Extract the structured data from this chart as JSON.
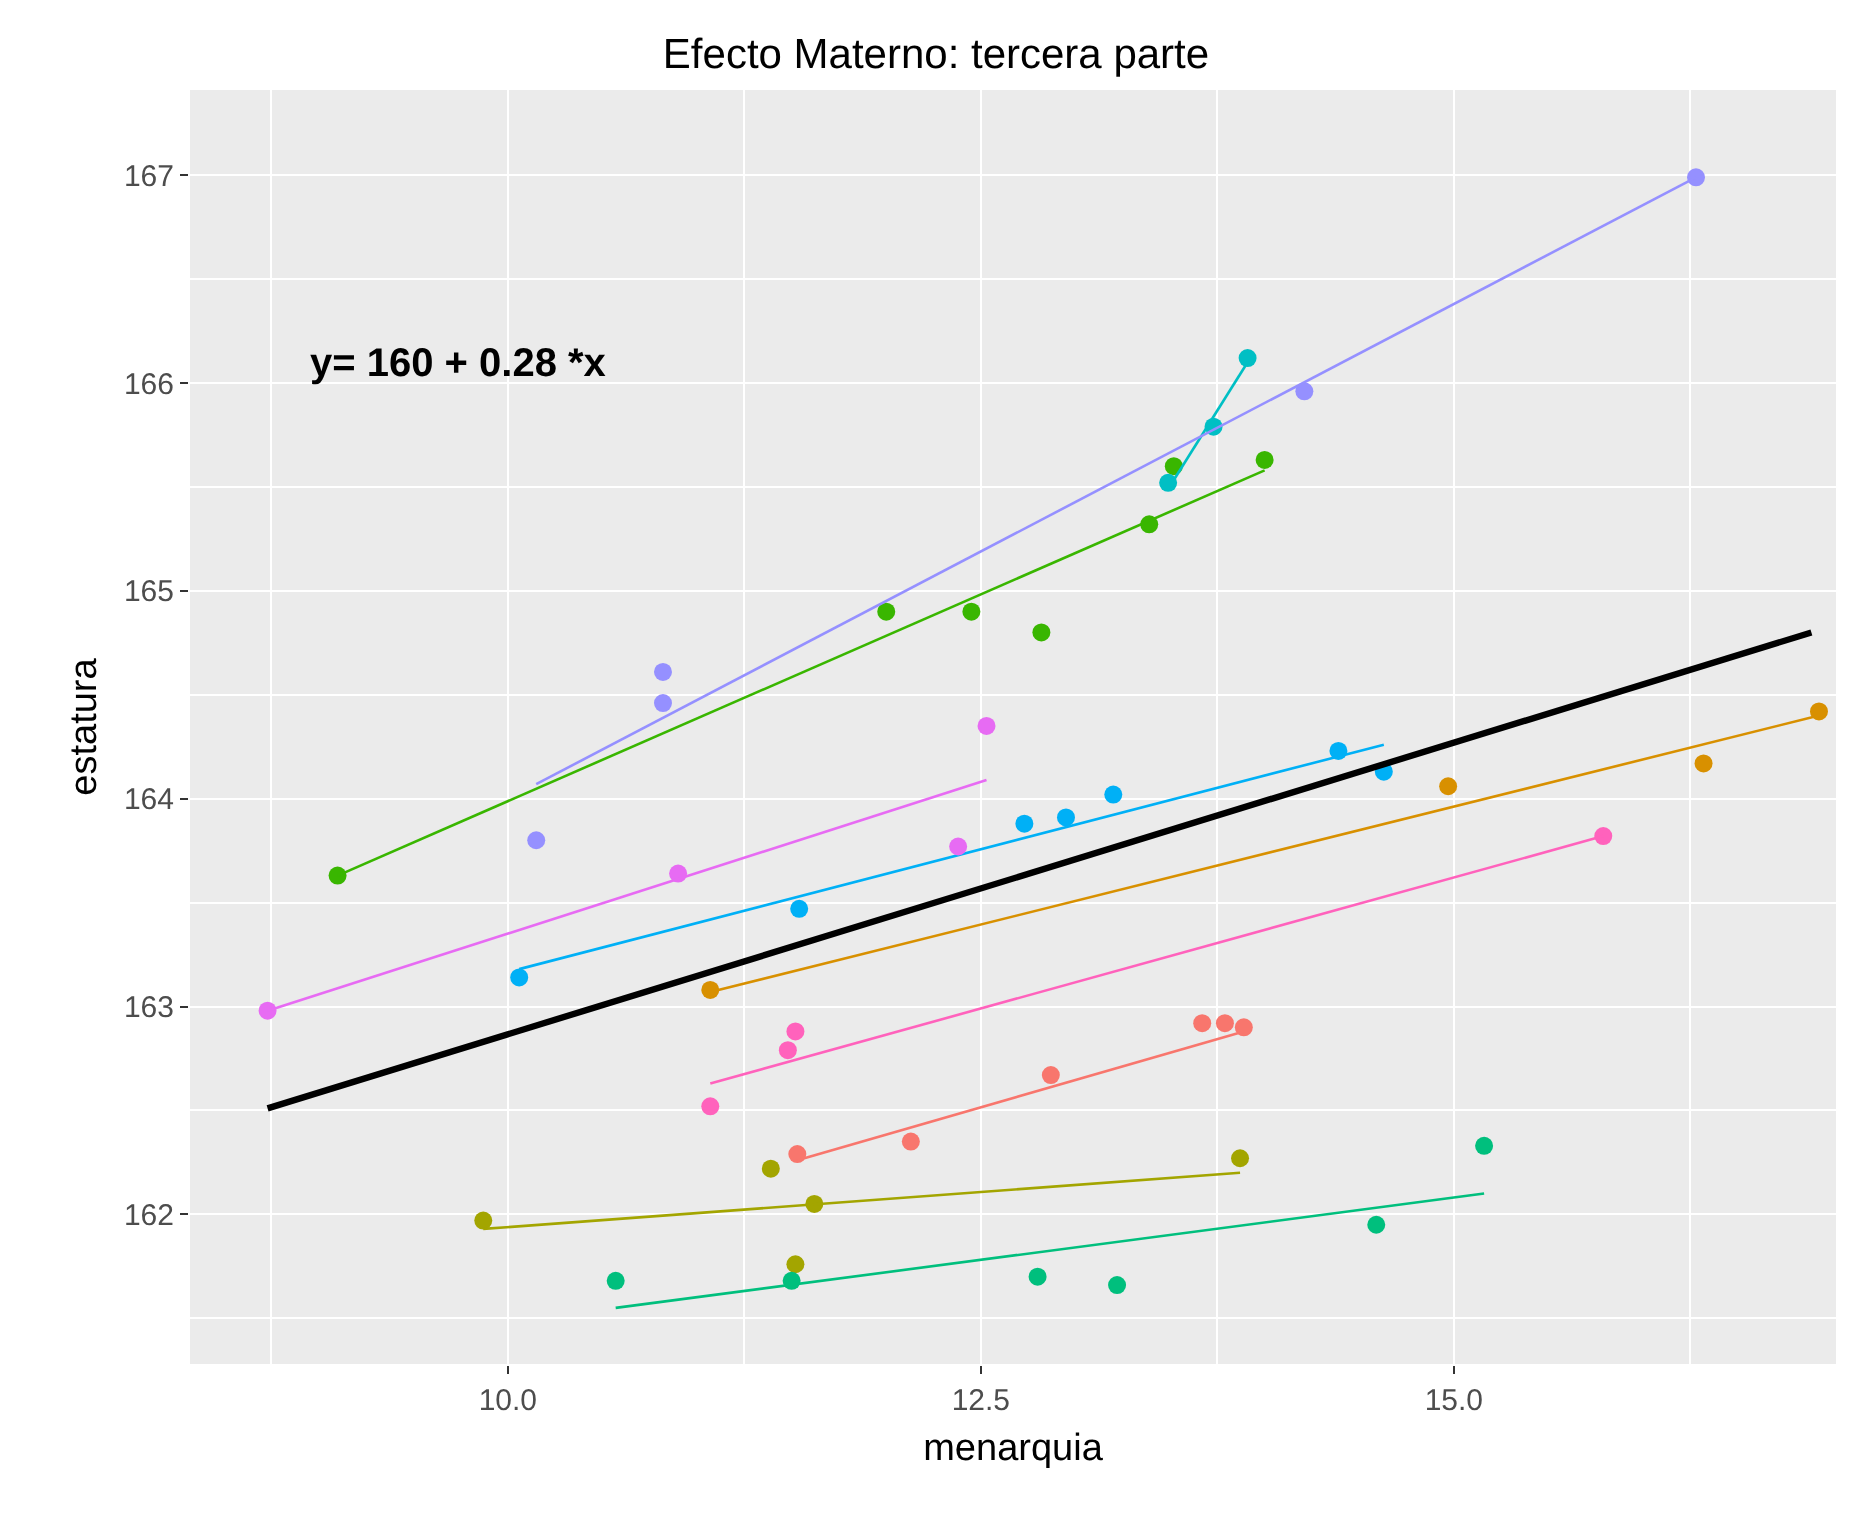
{
  "chart_data": {
    "type": "scatter",
    "title": "Efecto Materno: tercera parte",
    "xlabel": "menarquia",
    "ylabel": "estatura",
    "annotations": [
      "y= 160 + 0.28 *x"
    ],
    "xlim": [
      8.32,
      17.02
    ],
    "ylim": [
      161.28,
      167.41
    ],
    "xticks": [
      {
        "value": 10,
        "label": "10.0"
      },
      {
        "value": 12.5,
        "label": "12.5"
      },
      {
        "value": 15,
        "label": "15.0"
      }
    ],
    "yticks": [
      162,
      163,
      164,
      165,
      166,
      167
    ],
    "grid": true,
    "marker": "circle",
    "line_style": "solid",
    "series": [
      {
        "color": "#f8766d",
        "x": [
          11.53,
          12.13,
          12.87,
          13.67,
          13.79,
          13.89
        ],
        "values": [
          162.29,
          162.35,
          162.67,
          162.92,
          162.92,
          162.9
        ]
      },
      {
        "type": "line",
        "marker": "none",
        "color": "#f8766d",
        "x": [
          11.53,
          13.89
        ],
        "values": [
          162.26,
          162.88
        ]
      },
      {
        "color": "#d89000",
        "x": [
          11.07,
          14.97,
          16.32,
          16.93
        ],
        "values": [
          163.08,
          164.06,
          164.17,
          164.42
        ]
      },
      {
        "type": "line",
        "marker": "none",
        "color": "#d89000",
        "x": [
          11.07,
          16.93
        ],
        "values": [
          163.07,
          164.4
        ]
      },
      {
        "color": "#a3a500",
        "x": [
          9.87,
          11.39,
          11.52,
          11.62,
          13.87
        ],
        "values": [
          161.97,
          162.22,
          161.76,
          162.05,
          162.27
        ]
      },
      {
        "type": "line",
        "marker": "none",
        "color": "#a3a500",
        "x": [
          9.87,
          13.87
        ],
        "values": [
          161.93,
          162.2
        ]
      },
      {
        "color": "#39b600",
        "x": [
          9.1,
          12.0,
          12.45,
          12.82,
          13.39,
          13.52,
          14.0
        ],
        "values": [
          163.63,
          164.9,
          164.9,
          164.8,
          165.32,
          165.6,
          165.63
        ]
      },
      {
        "type": "line",
        "marker": "none",
        "color": "#39b600",
        "x": [
          9.1,
          14.0
        ],
        "values": [
          163.63,
          165.58
        ]
      },
      {
        "color": "#00bf7d",
        "x": [
          10.57,
          11.5,
          12.8,
          13.22,
          14.59,
          15.16
        ],
        "values": [
          161.68,
          161.68,
          161.7,
          161.66,
          161.95,
          162.33
        ]
      },
      {
        "type": "line",
        "marker": "none",
        "color": "#00bf7d",
        "x": [
          10.57,
          15.16
        ],
        "values": [
          161.55,
          162.1
        ]
      },
      {
        "color": "#00bfc4",
        "x": [
          13.49,
          13.73,
          13.91
        ],
        "values": [
          165.52,
          165.79,
          166.12
        ]
      },
      {
        "type": "line",
        "marker": "none",
        "color": "#00bfc4",
        "x": [
          13.49,
          13.91
        ],
        "values": [
          165.49,
          166.1
        ]
      },
      {
        "color": "#00b0f6",
        "x": [
          10.06,
          11.54,
          12.73,
          12.95,
          13.2,
          14.39,
          14.63
        ],
        "values": [
          163.14,
          163.47,
          163.88,
          163.91,
          164.02,
          164.23,
          164.13
        ]
      },
      {
        "type": "line",
        "marker": "none",
        "color": "#00b0f6",
        "x": [
          10.06,
          14.63
        ],
        "values": [
          163.18,
          164.26
        ]
      },
      {
        "color": "#9590ff",
        "x": [
          10.15,
          10.82,
          10.82,
          14.21,
          16.28
        ],
        "values": [
          163.8,
          164.61,
          164.46,
          165.96,
          166.99
        ]
      },
      {
        "type": "line",
        "marker": "none",
        "color": "#9590ff",
        "x": [
          10.15,
          16.28
        ],
        "values": [
          164.07,
          166.99
        ]
      },
      {
        "color": "#e76bf3",
        "x": [
          8.73,
          10.9,
          12.38,
          12.53
        ],
        "values": [
          162.98,
          163.64,
          163.77,
          164.35
        ]
      },
      {
        "type": "line",
        "marker": "none",
        "color": "#e76bf3",
        "x": [
          8.73,
          12.53
        ],
        "values": [
          162.98,
          164.09
        ]
      },
      {
        "color": "#ff62bc",
        "x": [
          11.07,
          11.48,
          11.52,
          15.79
        ],
        "values": [
          162.52,
          162.79,
          162.88,
          163.82
        ]
      },
      {
        "type": "line",
        "marker": "none",
        "color": "#ff62bc",
        "x": [
          11.07,
          15.79
        ],
        "values": [
          162.63,
          163.82
        ]
      },
      {
        "type": "line",
        "marker": "none",
        "color": "#000000",
        "x": [
          8.73,
          16.89
        ],
        "values": [
          162.51,
          164.8
        ]
      }
    ]
  }
}
